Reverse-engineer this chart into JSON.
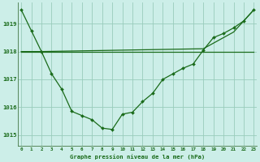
{
  "title": "Graphe pression niveau de la mer (hPa)",
  "background_color": "#cceee8",
  "grid_color": "#99ccbb",
  "line_color": "#1a6b1a",
  "xlim": [
    -0.3,
    23.3
  ],
  "ylim": [
    1014.6,
    1019.75
  ],
  "yticks": [
    1015,
    1016,
    1017,
    1018,
    1019
  ],
  "xticks": [
    0,
    1,
    2,
    3,
    4,
    5,
    6,
    7,
    8,
    9,
    10,
    11,
    12,
    13,
    14,
    15,
    16,
    17,
    18,
    19,
    20,
    21,
    22,
    23
  ],
  "series1_x": [
    0,
    1,
    2,
    3,
    4,
    5,
    6,
    7,
    8,
    9,
    10,
    11,
    12,
    13,
    14,
    15,
    16,
    17,
    18,
    19,
    20,
    21,
    22,
    23
  ],
  "series1_y": [
    1019.5,
    1018.75,
    1018.0,
    1017.2,
    1016.65,
    1015.85,
    1015.7,
    1015.55,
    1015.25,
    1015.2,
    1015.75,
    1015.82,
    1016.2,
    1016.5,
    1017.0,
    1017.2,
    1017.4,
    1017.55,
    1018.05,
    1018.5,
    1018.65,
    1018.85,
    1019.1,
    1019.5
  ],
  "series2_x": [
    0,
    23
  ],
  "series2_y": [
    1018.0,
    1018.0
  ],
  "series3_x": [
    0,
    2,
    10,
    18,
    21,
    23
  ],
  "series3_y": [
    1018.0,
    1018.0,
    1018.05,
    1018.1,
    1018.7,
    1019.5
  ],
  "xlabel_fontsize": 5.2,
  "ytick_fontsize": 5.2,
  "xtick_fontsize": 4.2
}
